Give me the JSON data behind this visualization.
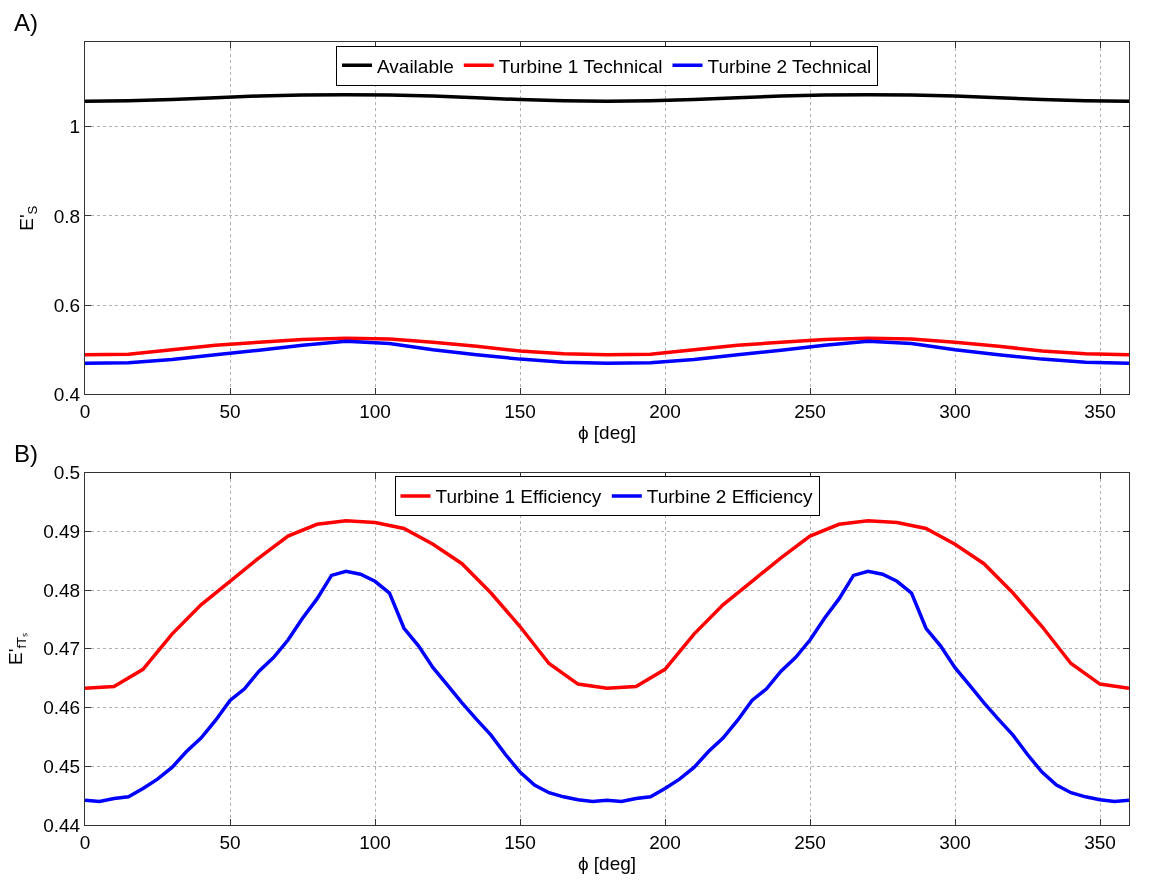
{
  "chart_data": [
    {
      "type": "line",
      "title": "A)",
      "xlabel": "ϕ [deg]",
      "ylabel": "E'$_{S}$",
      "xlim": [
        0,
        360
      ],
      "xticks": [
        0,
        50,
        100,
        150,
        200,
        250,
        300,
        350
      ],
      "ylim": [
        0.4,
        1.19
      ],
      "yticks": [
        0.4,
        0.6,
        0.8,
        1
      ],
      "grid": true,
      "legend": "top",
      "line_style": "solid",
      "x": [
        0,
        15,
        30,
        45,
        60,
        75,
        90,
        105,
        120,
        135,
        150,
        165,
        180,
        195,
        210,
        225,
        240,
        255,
        270,
        285,
        300,
        315,
        330,
        345,
        360
      ],
      "series": [
        {
          "name": "Available",
          "color": "#000000",
          "values": [
            1.057,
            1.058,
            1.061,
            1.065,
            1.069,
            1.071,
            1.072,
            1.071,
            1.069,
            1.065,
            1.061,
            1.058,
            1.057,
            1.058,
            1.061,
            1.065,
            1.069,
            1.071,
            1.072,
            1.071,
            1.069,
            1.065,
            1.061,
            1.058,
            1.057
          ]
        },
        {
          "name": "Turbine 1 Technical",
          "color": "#ff0000",
          "values": [
            0.489,
            0.49,
            0.5,
            0.51,
            0.517,
            0.523,
            0.526,
            0.524,
            0.517,
            0.508,
            0.497,
            0.491,
            0.489,
            0.49,
            0.5,
            0.51,
            0.517,
            0.523,
            0.526,
            0.524,
            0.517,
            0.508,
            0.497,
            0.491,
            0.489
          ]
        },
        {
          "name": "Turbine 2 Technical",
          "color": "#0000ff",
          "values": [
            0.47,
            0.471,
            0.478,
            0.489,
            0.499,
            0.51,
            0.519,
            0.514,
            0.5,
            0.489,
            0.479,
            0.472,
            0.47,
            0.471,
            0.478,
            0.489,
            0.499,
            0.51,
            0.519,
            0.514,
            0.5,
            0.489,
            0.479,
            0.472,
            0.47
          ]
        }
      ]
    },
    {
      "type": "line",
      "title": "B)",
      "xlabel": "ϕ [deg]",
      "ylabel": "E'$_{fTₛ}$",
      "xlim": [
        0,
        360
      ],
      "xticks": [
        0,
        50,
        100,
        150,
        200,
        250,
        300,
        350
      ],
      "ylim": [
        0.44,
        0.5
      ],
      "yticks": [
        0.44,
        0.45,
        0.46,
        0.47,
        0.48,
        0.49,
        0.5
      ],
      "grid": true,
      "legend": "top",
      "line_style": "solid",
      "series": [
        {
          "name": "Turbine 1 Efficiency",
          "color": "#ff0000",
          "x": [
            0,
            10,
            20,
            30,
            40,
            50,
            60,
            70,
            80,
            90,
            100,
            110,
            120,
            130,
            140,
            150,
            160,
            170,
            180,
            190,
            200,
            210,
            220,
            230,
            240,
            250,
            260,
            270,
            280,
            290,
            300,
            310,
            320,
            330,
            340,
            350,
            360
          ],
          "values": [
            0.4633,
            0.4636,
            0.4665,
            0.4725,
            0.4775,
            0.4815,
            0.4855,
            0.4892,
            0.4912,
            0.4918,
            0.4915,
            0.4905,
            0.4878,
            0.4845,
            0.4795,
            0.4738,
            0.4675,
            0.464,
            0.4633,
            0.4636,
            0.4665,
            0.4725,
            0.4775,
            0.4815,
            0.4855,
            0.4892,
            0.4912,
            0.4918,
            0.4915,
            0.4905,
            0.4878,
            0.4845,
            0.4795,
            0.4738,
            0.4675,
            0.464,
            0.4633
          ]
        },
        {
          "name": "Turbine 2 Efficiency",
          "color": "#0000ff",
          "x": [
            0,
            5,
            10,
            15,
            20,
            25,
            30,
            35,
            40,
            45,
            50,
            55,
            60,
            65,
            70,
            75,
            80,
            85,
            90,
            95,
            100,
            105,
            110,
            115,
            120,
            125,
            130,
            135,
            140,
            145,
            150,
            155,
            160,
            165,
            170,
            175,
            180,
            185,
            190,
            195,
            200,
            205,
            210,
            215,
            220,
            225,
            230,
            235,
            240,
            245,
            250,
            255,
            260,
            265,
            270,
            275,
            280,
            285,
            290,
            295,
            300,
            305,
            310,
            315,
            320,
            325,
            330,
            335,
            340,
            345,
            350,
            355,
            360
          ],
          "values": [
            0.4442,
            0.444,
            0.4445,
            0.4448,
            0.4462,
            0.4478,
            0.4498,
            0.4525,
            0.4548,
            0.4578,
            0.4612,
            0.4632,
            0.4662,
            0.4685,
            0.4715,
            0.4752,
            0.4785,
            0.4825,
            0.4832,
            0.4827,
            0.4815,
            0.4795,
            0.4735,
            0.4705,
            0.4668,
            0.4638,
            0.4608,
            0.458,
            0.4553,
            0.452,
            0.449,
            0.4468,
            0.4455,
            0.4448,
            0.4443,
            0.444,
            0.4442,
            0.444,
            0.4445,
            0.4448,
            0.4462,
            0.4478,
            0.4498,
            0.4525,
            0.4548,
            0.4578,
            0.4612,
            0.4632,
            0.4662,
            0.4685,
            0.4715,
            0.4752,
            0.4785,
            0.4825,
            0.4832,
            0.4827,
            0.4815,
            0.4795,
            0.4735,
            0.4705,
            0.4668,
            0.4638,
            0.4608,
            0.458,
            0.4553,
            0.452,
            0.449,
            0.4468,
            0.4455,
            0.4448,
            0.4443,
            0.444,
            0.4442
          ]
        }
      ]
    }
  ]
}
